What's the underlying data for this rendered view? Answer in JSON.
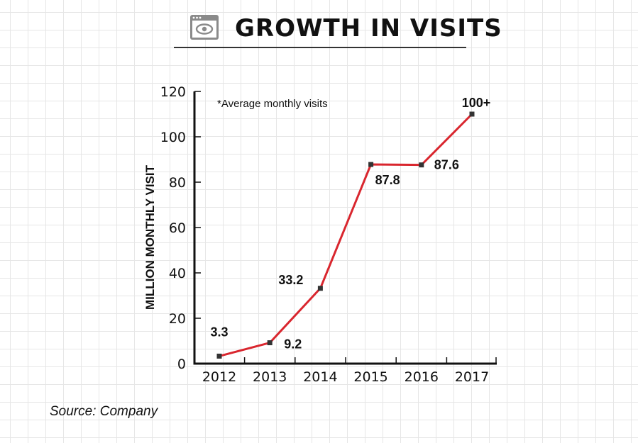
{
  "header": {
    "title": "GROWTH IN VISITS",
    "icon": "browser-eye-icon",
    "icon_color": "#888888"
  },
  "chart_data": {
    "type": "line",
    "title": "GROWTH IN VISITS",
    "xlabel": "",
    "ylabel": "MILLION MONTHLY VISIT",
    "annotation": "*Average monthly visits",
    "categories": [
      "2012",
      "2013",
      "2014",
      "2015",
      "2016",
      "2017"
    ],
    "series": [
      {
        "name": "Average monthly visits",
        "values": [
          3.3,
          9.2,
          33.2,
          87.8,
          87.6,
          110
        ],
        "labels": [
          "3.3",
          "9.2",
          "33.2",
          "87.8",
          "87.6",
          "100+"
        ],
        "color": "#d9262e"
      }
    ],
    "ylim": [
      0,
      120
    ],
    "yticks": [
      0,
      20,
      40,
      60,
      80,
      100,
      120
    ],
    "grid": false,
    "legend": "none"
  },
  "footer": {
    "source": "Source: Company"
  }
}
